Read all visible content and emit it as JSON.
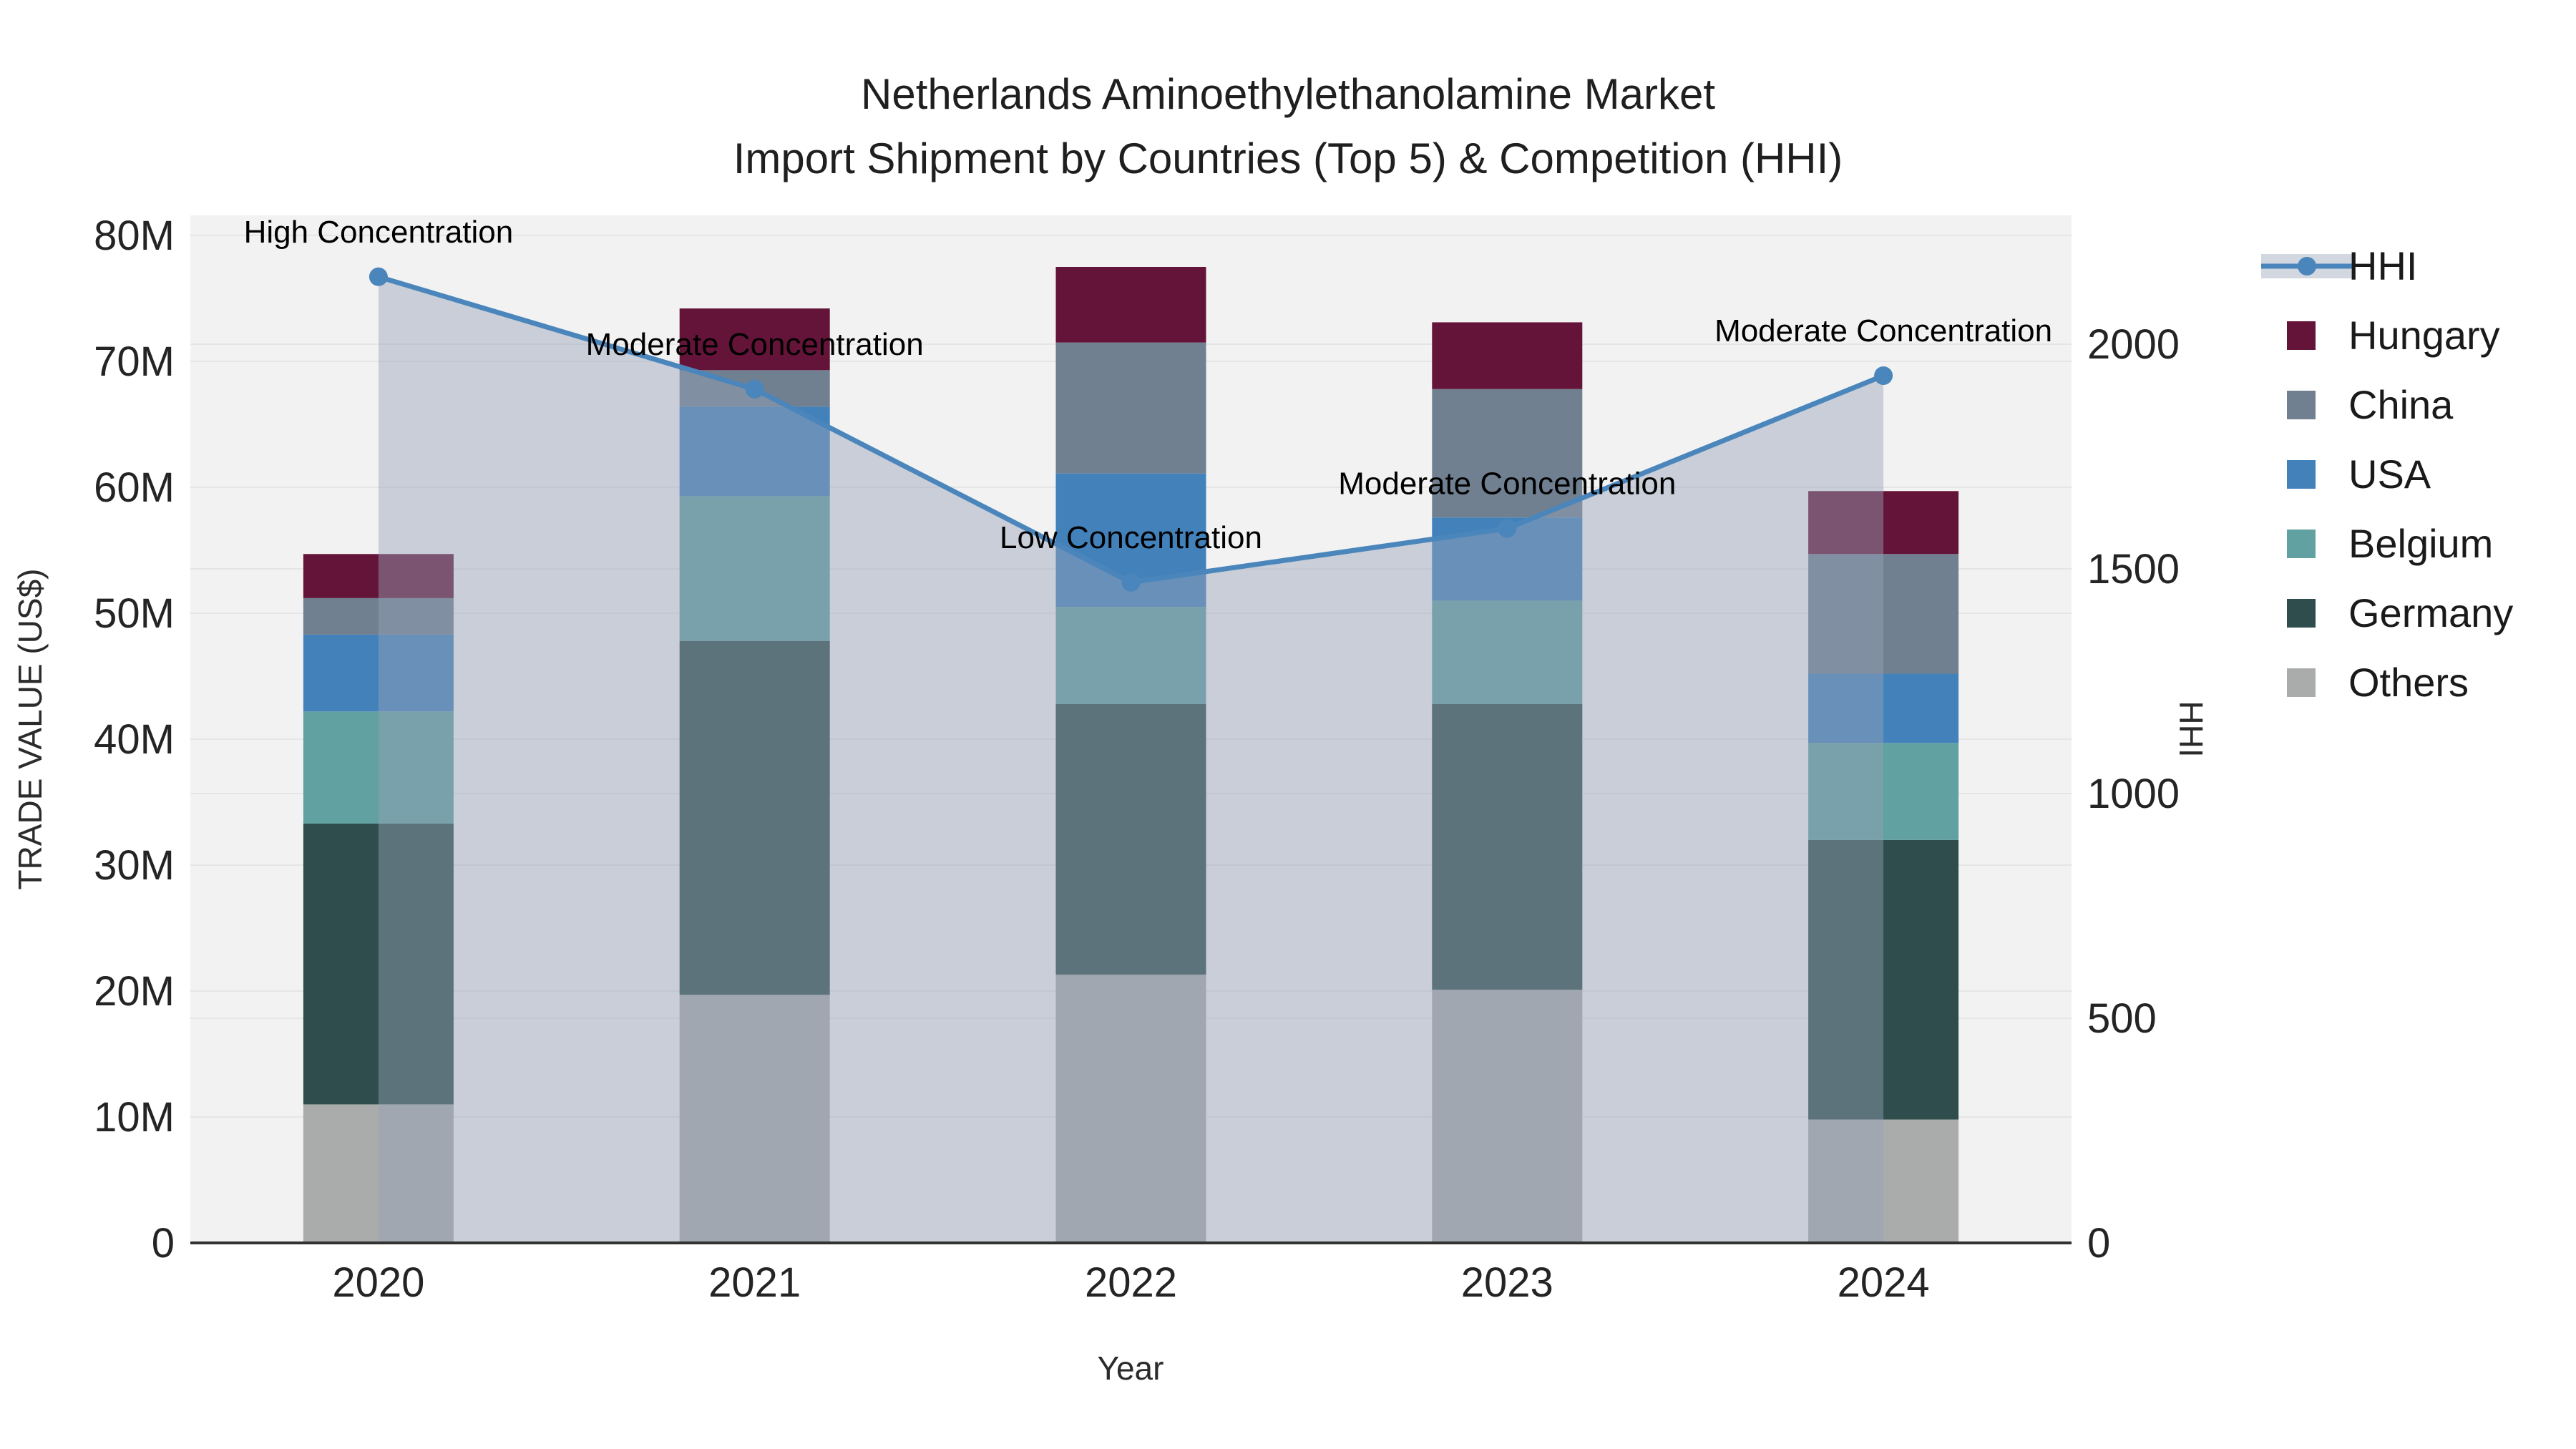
{
  "chart_data": {
    "type": "bar",
    "subtype": "stacked-bars-with-line-overlay",
    "title_line1": "Netherlands Aminoethylethanolamine Market",
    "title_line2": "Import Shipment by Countries (Top 5) & Competition (HHI)",
    "xlabel": "Year",
    "ylabel_left": "TRADE VALUE (US$)",
    "ylabel_right": "HHI",
    "categories": [
      "2020",
      "2021",
      "2022",
      "2023",
      "2024"
    ],
    "unit": "million US$",
    "series": [
      {
        "name": "Others",
        "color": "#aaabab",
        "values": [
          11.0,
          19.7,
          21.3,
          20.1,
          9.8
        ]
      },
      {
        "name": "Germany",
        "color": "#2e4d4c",
        "values": [
          22.3,
          28.1,
          21.5,
          22.7,
          22.2
        ]
      },
      {
        "name": "Belgium",
        "color": "#62a1a2",
        "values": [
          8.9,
          11.5,
          7.7,
          8.2,
          7.7
        ]
      },
      {
        "name": "USA",
        "color": "#4381bb",
        "values": [
          6.1,
          7.1,
          10.6,
          6.6,
          5.5
        ]
      },
      {
        "name": "China",
        "color": "#708090",
        "values": [
          2.9,
          2.9,
          10.4,
          10.2,
          9.5
        ]
      },
      {
        "name": "Hungary",
        "color": "#641439",
        "values": [
          3.5,
          4.9,
          6.0,
          5.3,
          5.0
        ]
      }
    ],
    "bar_totals": [
      54.7,
      74.2,
      77.5,
      73.1,
      59.7
    ],
    "hhi": {
      "name": "HHI",
      "line_color": "#4a86bb",
      "fill_color": "rgba(150,162,183,0.45)",
      "legend_band_color": "#d2d7e0",
      "values": [
        2150,
        1900,
        1470,
        1590,
        1930
      ]
    },
    "annotations": [
      "High Concentration",
      "Moderate Concentration",
      "Low Concentration",
      "Moderate Concentration",
      "Moderate Concentration"
    ],
    "y_left": {
      "min": 0,
      "max": 80,
      "tick_step": 10,
      "tick_labels": [
        "0",
        "10M",
        "20M",
        "30M",
        "40M",
        "50M",
        "60M",
        "70M",
        "80M"
      ]
    },
    "y_right": {
      "min": 0,
      "ticks": [
        0,
        500,
        1000,
        1500,
        2000
      ],
      "tick_labels": [
        "0",
        "500",
        "1000",
        "1500",
        "2000"
      ]
    },
    "legend_entries": [
      "HHI",
      "Hungary",
      "China",
      "USA",
      "Belgium",
      "Germany",
      "Others"
    ],
    "layout_hints": {
      "plot_background": "#f2f2f2",
      "grid_color": "#e5e5e5",
      "axis_line_color": "#323232",
      "grid_on": true,
      "legend_position": "right"
    }
  }
}
